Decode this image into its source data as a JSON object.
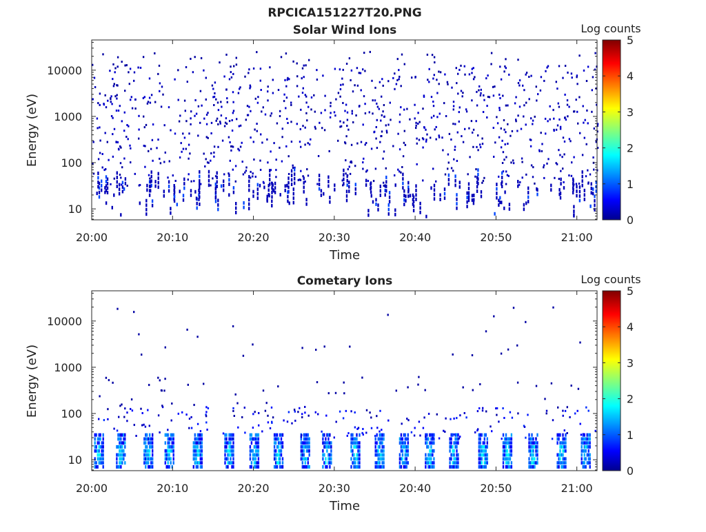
{
  "figure": {
    "title": "RPCICA151227T20.PNG"
  },
  "chart_data": [
    {
      "type": "heatmap",
      "title": "Solar Wind Ions",
      "xlabel": "Time",
      "ylabel": "Energy (eV)",
      "x_ticks": [
        "20:00",
        "20:10",
        "20:20",
        "20:30",
        "20:40",
        "20:50",
        "21:00"
      ],
      "y_ticks": [
        "10",
        "100",
        "1000",
        "10000"
      ],
      "y_scale": "log",
      "ylim": [
        5.8,
        45000
      ],
      "xlim_minutes": [
        0,
        62.5
      ],
      "colorbar": {
        "label": "Log counts",
        "ticks": [
          "0",
          "1",
          "2",
          "3",
          "4",
          "5"
        ],
        "range": [
          0,
          5
        ]
      },
      "grid": false,
      "pattern": "sparse single counts spread over 30 eV to 10 keV, short dense bursts below 40 eV",
      "seed": 11
    },
    {
      "type": "heatmap",
      "title": "Cometary Ions",
      "xlabel": "Time",
      "ylabel": "Energy (eV)",
      "x_ticks": [
        "20:00",
        "20:10",
        "20:20",
        "20:30",
        "20:40",
        "20:50",
        "21:00"
      ],
      "y_ticks": [
        "10",
        "100",
        "1000",
        "10000"
      ],
      "y_scale": "log",
      "ylim": [
        5.8,
        45000
      ],
      "xlim_minutes": [
        0,
        62.5
      ],
      "colorbar": {
        "label": "Log counts",
        "ticks": [
          "0",
          "1",
          "2",
          "3",
          "4",
          "5"
        ],
        "range": [
          0,
          5
        ]
      },
      "grid": false,
      "pattern": "periodic bands of 1-2 log counts below 30 eV, sparse counts up to 17 keV",
      "burst_minutes": [
        0.3,
        3.0,
        6.4,
        9.0,
        12.5,
        16.4,
        19.5,
        22.5,
        25.8,
        28.5,
        32.0,
        35.0,
        38.0,
        41.2,
        44.2,
        47.8,
        50.8,
        54.0,
        57.5,
        60.5
      ],
      "seed": 29
    }
  ]
}
